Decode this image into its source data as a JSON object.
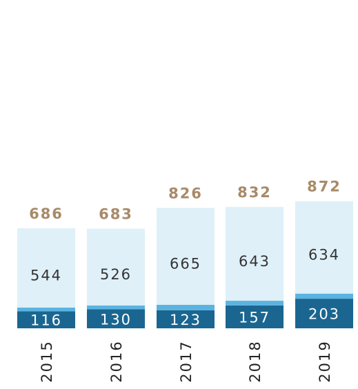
{
  "chart_data": {
    "type": "stacked_bar",
    "categories": [
      "2015",
      "2016",
      "2017",
      "2018",
      "2019"
    ],
    "series": [
      {
        "color": "#1a6690",
        "values": [
          116,
          130,
          123,
          157,
          203
        ]
      },
      {
        "color": "#5bb4e0",
        "values": [
          26,
          27,
          38,
          32,
          35
        ]
      },
      {
        "color": "#dff0f8",
        "values": [
          544,
          526,
          665,
          643,
          634
        ]
      }
    ],
    "totals": [
      686,
      683,
      826,
      832,
      872
    ],
    "total_color": "#a88a68"
  }
}
